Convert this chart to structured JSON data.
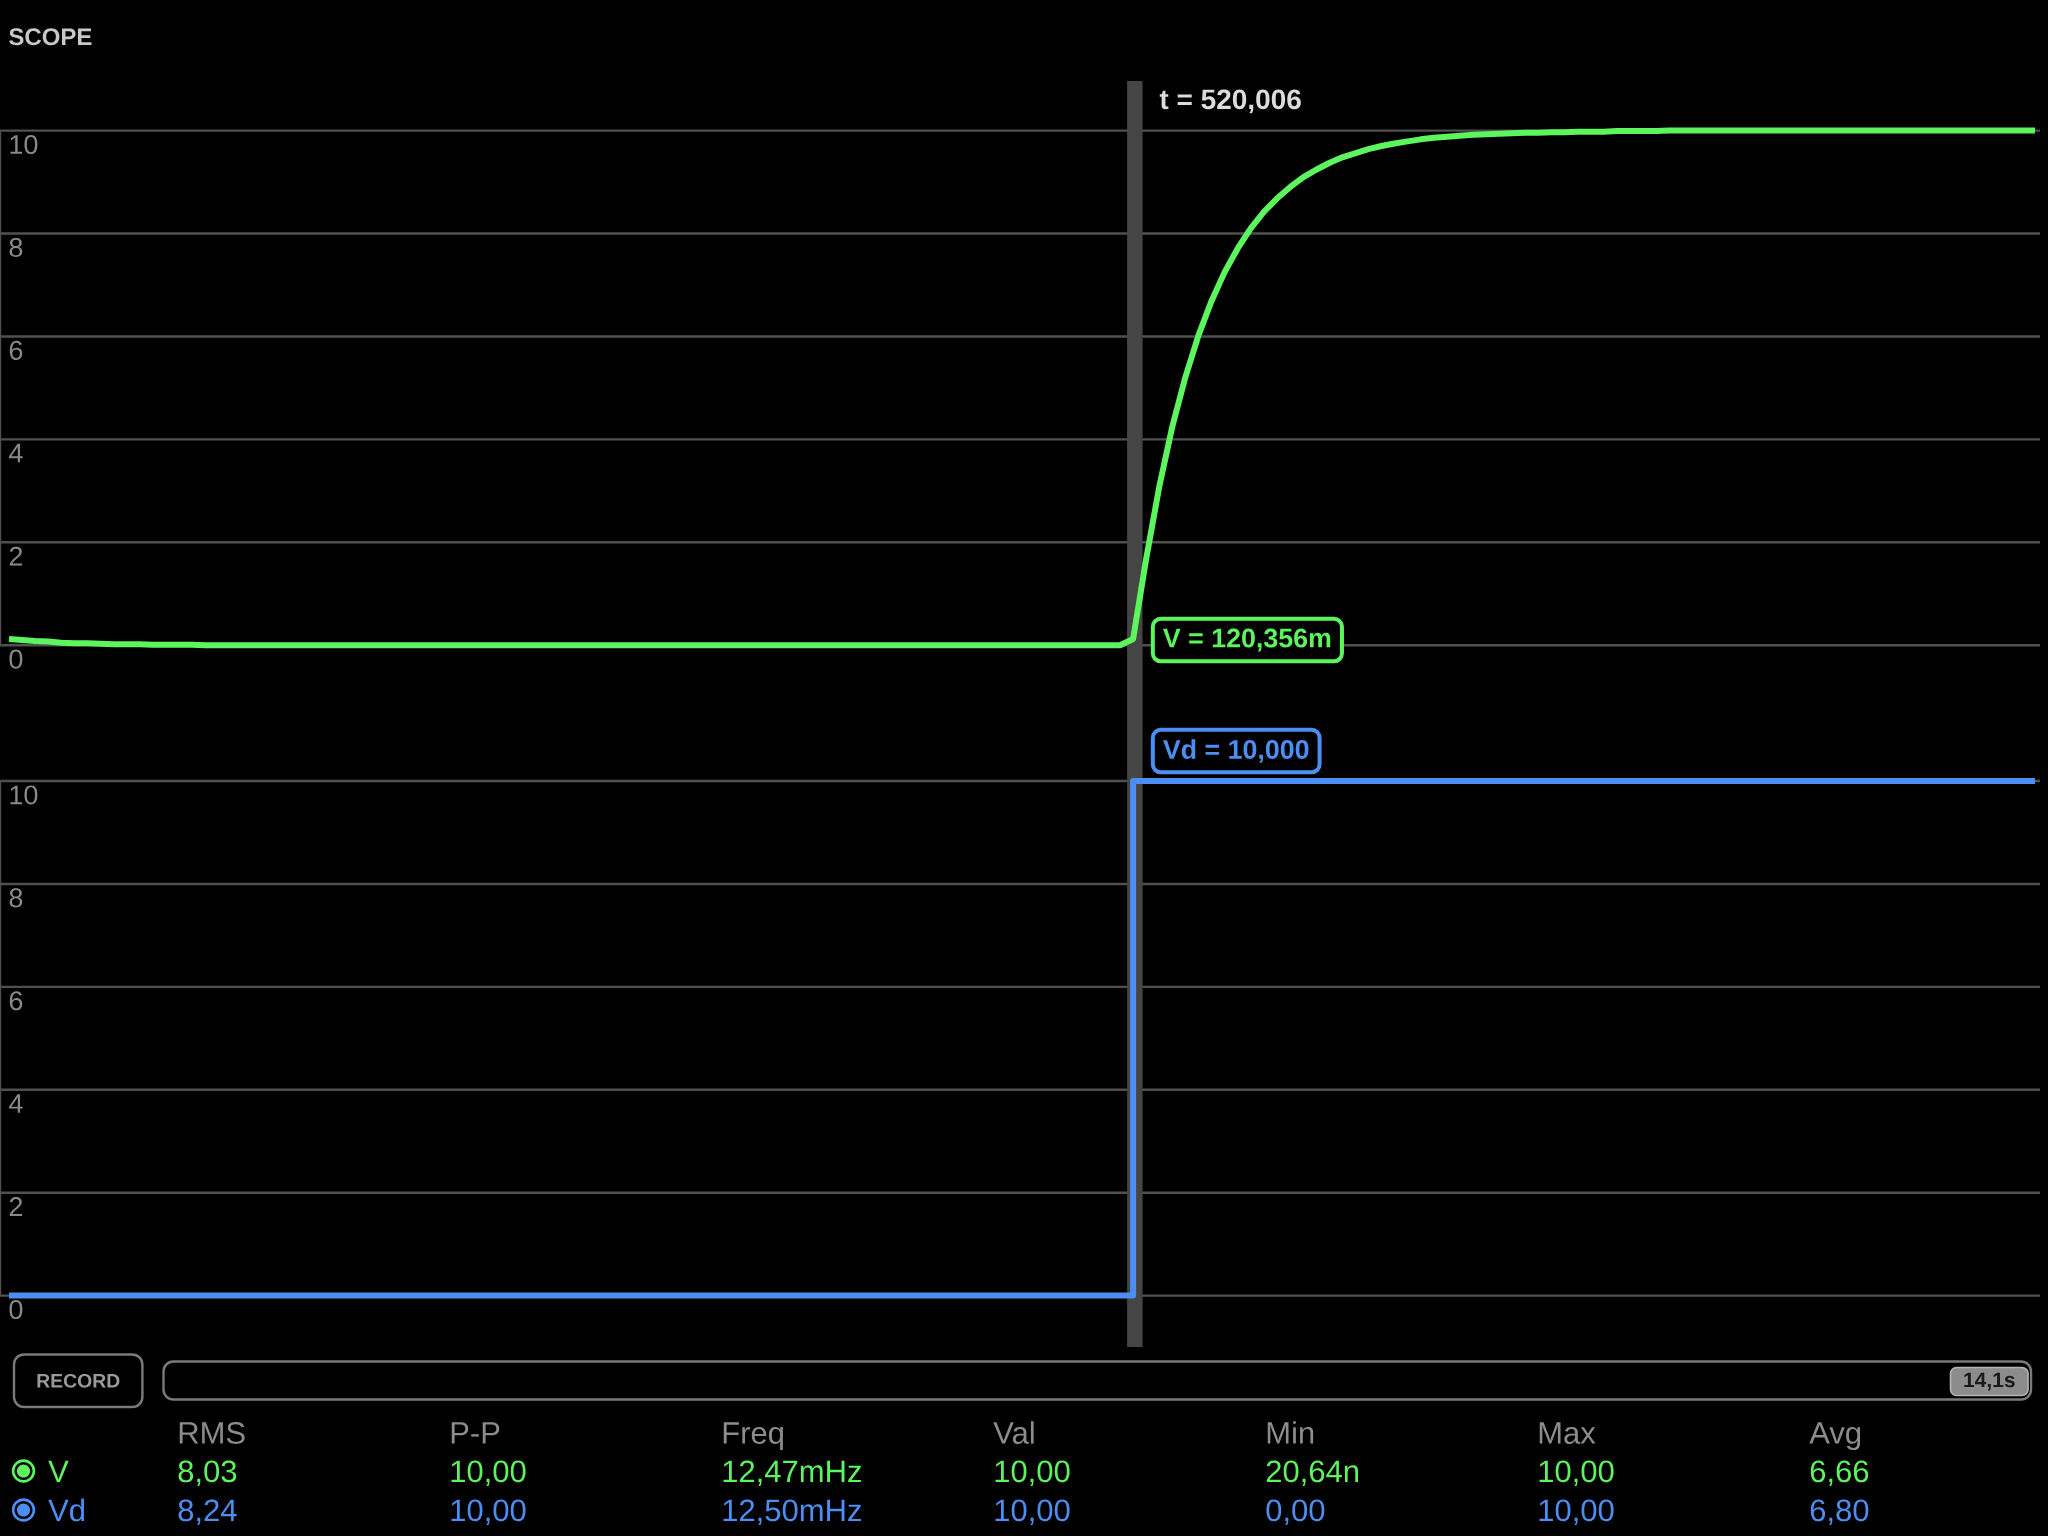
{
  "chart_data": [
    {
      "type": "line",
      "title": "SCOPE",
      "categories": [
        null,
        null,
        null,
        null,
        null,
        null,
        null,
        null,
        null,
        null,
        null,
        null,
        null,
        null,
        null,
        null,
        null,
        null,
        null,
        null,
        null,
        null,
        null,
        null,
        null,
        null,
        null,
        null,
        null,
        null,
        null,
        null,
        null,
        null,
        null,
        null,
        null,
        null,
        null,
        null,
        null,
        null,
        null,
        null,
        null,
        null,
        null,
        null,
        null,
        null,
        null,
        null,
        null,
        null,
        null,
        null,
        null,
        null,
        null,
        null,
        null,
        null,
        null,
        null,
        null,
        null,
        null,
        null,
        null,
        null,
        null,
        null,
        null,
        null,
        null,
        null,
        null,
        null,
        null,
        null,
        null,
        null,
        null,
        null,
        null,
        null,
        null,
        null,
        null,
        null,
        null,
        null,
        null,
        null,
        null,
        null,
        null,
        null,
        null,
        null,
        null,
        null,
        null,
        null,
        null,
        null,
        null,
        null,
        null,
        null,
        null,
        null,
        null,
        null,
        null,
        null,
        null,
        null,
        null,
        null,
        null,
        null,
        null,
        null,
        null,
        null,
        null,
        null,
        null,
        null,
        null,
        null,
        null,
        null,
        null,
        null,
        null,
        null,
        null,
        null,
        null,
        null,
        null,
        null,
        null,
        null,
        null,
        null,
        null,
        null,
        null,
        null,
        null,
        null,
        null,
        null
      ],
      "series": [
        {
          "color": "#5DF55D",
          "values": [
            0.12,
            0.1,
            0.08,
            0.07,
            0.05,
            0.04,
            0.04,
            0.03,
            0.02,
            0.02,
            0.02,
            0.01,
            0.01,
            0.01,
            0.01,
            0,
            0,
            0,
            0,
            0,
            0,
            0,
            0,
            0,
            0,
            0,
            0,
            0,
            0,
            0,
            0,
            0,
            0,
            0,
            0,
            0,
            0,
            0,
            0,
            0,
            0,
            0,
            0,
            0,
            0,
            0,
            0,
            0,
            0,
            0,
            0,
            0,
            0,
            0,
            0,
            0,
            0,
            0,
            0,
            0,
            0,
            0,
            0,
            0,
            0,
            0,
            0,
            0,
            0,
            0,
            0,
            0,
            0,
            0,
            0,
            0,
            0,
            0,
            0,
            0,
            0,
            0,
            0,
            0,
            0,
            0,
            0.12,
            1.68,
            3.08,
            4.25,
            5.21,
            6.02,
            6.69,
            7.25,
            7.71,
            8.1,
            8.42,
            8.68,
            8.9,
            9.09,
            9.24,
            9.37,
            9.48,
            9.56,
            9.64,
            9.7,
            9.75,
            9.79,
            9.83,
            9.86,
            9.88,
            9.9,
            9.92,
            9.93,
            9.94,
            9.95,
            9.96,
            9.96,
            9.97,
            9.97,
            9.98,
            9.98,
            9.98,
            9.99,
            9.99,
            9.99,
            9.99,
            10,
            10,
            10,
            10,
            10,
            10,
            10,
            10,
            10,
            10,
            10,
            10,
            10,
            10,
            10,
            10,
            10,
            10,
            10,
            10,
            10,
            10,
            10,
            10,
            10,
            10,
            10,
            10,
            10
          ]
        }
      ],
      "ylim": [
        0,
        10
      ],
      "yticks": [
        0,
        2,
        4,
        6,
        8,
        10
      ],
      "grid": "y",
      "annotations": [
        "t = 520,006",
        "V = 120,356m"
      ]
    },
    {
      "type": "step",
      "categories": [
        null,
        null,
        null,
        null,
        null,
        null,
        null,
        null,
        null,
        null,
        null,
        null,
        null,
        null,
        null,
        null,
        null,
        null,
        null,
        null,
        null,
        null,
        null,
        null,
        null,
        null,
        null,
        null,
        null,
        null,
        null,
        null,
        null,
        null,
        null,
        null,
        null,
        null,
        null,
        null,
        null,
        null,
        null,
        null,
        null,
        null,
        null,
        null,
        null,
        null,
        null,
        null,
        null,
        null,
        null,
        null,
        null,
        null,
        null,
        null,
        null,
        null,
        null,
        null,
        null,
        null,
        null,
        null,
        null,
        null,
        null,
        null,
        null,
        null,
        null,
        null,
        null,
        null,
        null,
        null,
        null,
        null,
        null,
        null,
        null,
        null,
        null,
        null,
        null,
        null,
        null,
        null,
        null,
        null,
        null,
        null,
        null,
        null,
        null,
        null,
        null,
        null,
        null,
        null,
        null,
        null,
        null,
        null,
        null,
        null,
        null,
        null,
        null,
        null,
        null,
        null,
        null,
        null,
        null,
        null,
        null,
        null,
        null,
        null,
        null,
        null,
        null,
        null,
        null,
        null,
        null,
        null,
        null,
        null,
        null,
        null,
        null,
        null,
        null,
        null,
        null,
        null,
        null,
        null,
        null,
        null,
        null,
        null,
        null,
        null,
        null,
        null,
        null,
        null,
        null,
        null
      ],
      "series": [
        {
          "color": "#4D8EF5",
          "values": [
            0,
            0,
            0,
            0,
            0,
            0,
            0,
            0,
            0,
            0,
            0,
            0,
            0,
            0,
            0,
            0,
            0,
            0,
            0,
            0,
            0,
            0,
            0,
            0,
            0,
            0,
            0,
            0,
            0,
            0,
            0,
            0,
            0,
            0,
            0,
            0,
            0,
            0,
            0,
            0,
            0,
            0,
            0,
            0,
            0,
            0,
            0,
            0,
            0,
            0,
            0,
            0,
            0,
            0,
            0,
            0,
            0,
            0,
            0,
            0,
            0,
            0,
            0,
            0,
            0,
            0,
            0,
            0,
            0,
            0,
            0,
            0,
            0,
            0,
            0,
            0,
            0,
            0,
            0,
            0,
            0,
            0,
            0,
            0,
            0,
            0,
            10,
            10,
            10,
            10,
            10,
            10,
            10,
            10,
            10,
            10,
            10,
            10,
            10,
            10,
            10,
            10,
            10,
            10,
            10,
            10,
            10,
            10,
            10,
            10,
            10,
            10,
            10,
            10,
            10,
            10,
            10,
            10,
            10,
            10,
            10,
            10,
            10,
            10,
            10,
            10,
            10,
            10,
            10,
            10,
            10,
            10,
            10,
            10,
            10,
            10,
            10,
            10,
            10,
            10,
            10,
            10,
            10,
            10,
            10,
            10,
            10,
            10,
            10,
            10,
            10,
            10,
            10,
            10,
            10,
            10
          ]
        }
      ],
      "ylim": [
        0,
        10
      ],
      "yticks": [
        0,
        2,
        4,
        6,
        8,
        10
      ],
      "grid": "y",
      "annotations": [
        "Vd = 10,000"
      ]
    },
    {
      "type": "other",
      "categories": [
        "RMS",
        "P-P",
        "Freq",
        "Val",
        "Min",
        "Max",
        "Avg"
      ],
      "series": [
        {
          "name": "V",
          "color": "#5DF55D",
          "values": [
            8.03,
            10.0,
            12.47,
            10.0,
            20.64,
            10.0,
            6.66
          ],
          "value_labels": [
            "8,03",
            "10,00",
            "12,47mHz",
            "10,00",
            "20,64n",
            "10,00",
            "6,66"
          ]
        },
        {
          "name": "Vd",
          "color": "#4D8EF5",
          "values": [
            8.24,
            10.0,
            12.5,
            10.0,
            0.0,
            10.0,
            6.8
          ],
          "value_labels": [
            "8,24",
            "10,00",
            "12,50mHz",
            "10,00",
            "0,00",
            "10,00",
            "6,80"
          ]
        }
      ],
      "annotations": [
        "RECORD",
        "14,1s"
      ]
    }
  ]
}
